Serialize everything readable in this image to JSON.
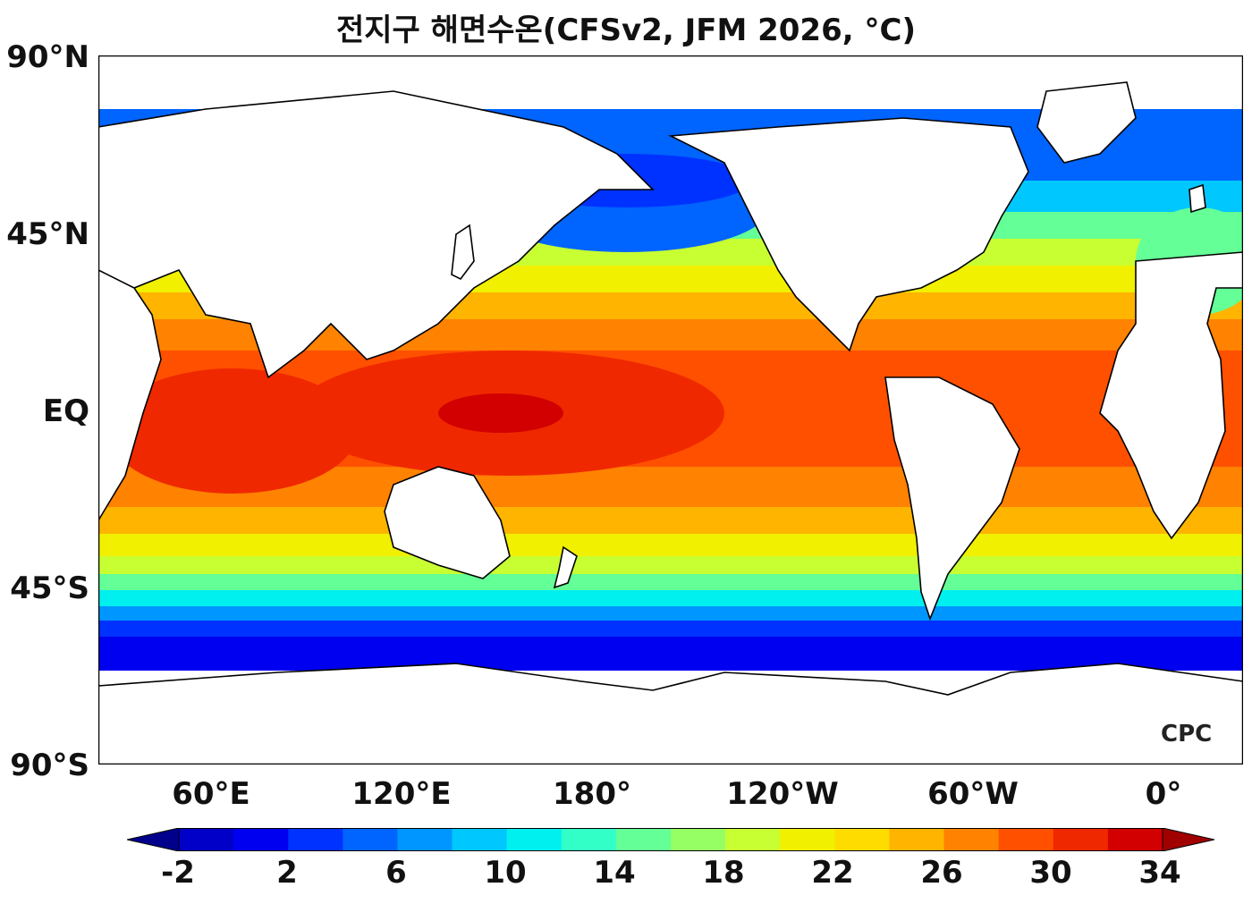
{
  "title": "전지구 해면수온(CFSv2, JFM 2026, °C)",
  "y_axis": {
    "ticks": [
      "90°N",
      "45°N",
      "EQ",
      "45°S",
      "90°S"
    ]
  },
  "x_axis": {
    "ticks": [
      "60°E",
      "120°E",
      "180°",
      "120°W",
      "60°W",
      "0°"
    ]
  },
  "colorbar": {
    "labels": [
      "-2",
      "2",
      "6",
      "10",
      "14",
      "18",
      "22",
      "26",
      "30",
      "34"
    ],
    "colors": [
      "#00008c",
      "#0000c8",
      "#0000f0",
      "#0032ff",
      "#0064ff",
      "#0096ff",
      "#00c8ff",
      "#00f0f0",
      "#32ffc8",
      "#64ff96",
      "#96ff64",
      "#c8ff32",
      "#f0f000",
      "#ffdc00",
      "#ffb400",
      "#ff8200",
      "#ff5000",
      "#f02800",
      "#d20000",
      "#a00000"
    ],
    "extend": "both"
  },
  "logo": "CPC"
}
